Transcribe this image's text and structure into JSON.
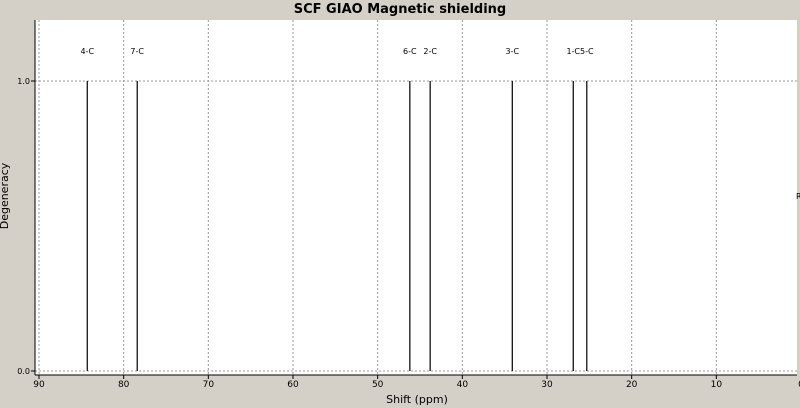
{
  "chart_data": {
    "type": "bar",
    "title": "SCF GIAO Magnetic shielding",
    "xlabel": "Shift (ppm)",
    "ylabel": "Degeneracy",
    "xlim": [
      90,
      0
    ],
    "ylim": [
      0.0,
      1.0
    ],
    "x_ticks": [
      "90",
      "80",
      "70",
      "60",
      "50",
      "40",
      "30",
      "20",
      "10",
      "0"
    ],
    "y_ticks": [
      "0.0",
      "1.0"
    ],
    "grid": true,
    "series": [
      {
        "label": "4-C",
        "x": 84.3,
        "y": 1.0
      },
      {
        "label": "7-C",
        "x": 78.4,
        "y": 1.0
      },
      {
        "label": "6-C",
        "x": 46.2,
        "y": 1.0
      },
      {
        "label": "2-C",
        "x": 43.8,
        "y": 1.0
      },
      {
        "label": "3-C",
        "x": 34.1,
        "y": 1.0
      },
      {
        "label": "1-C",
        "x": 26.9,
        "y": 1.0
      },
      {
        "label": "5-C",
        "x": 25.3,
        "y": 1.0
      },
      {
        "label": "Re",
        "x": 0.0,
        "y": 0.5
      }
    ]
  }
}
